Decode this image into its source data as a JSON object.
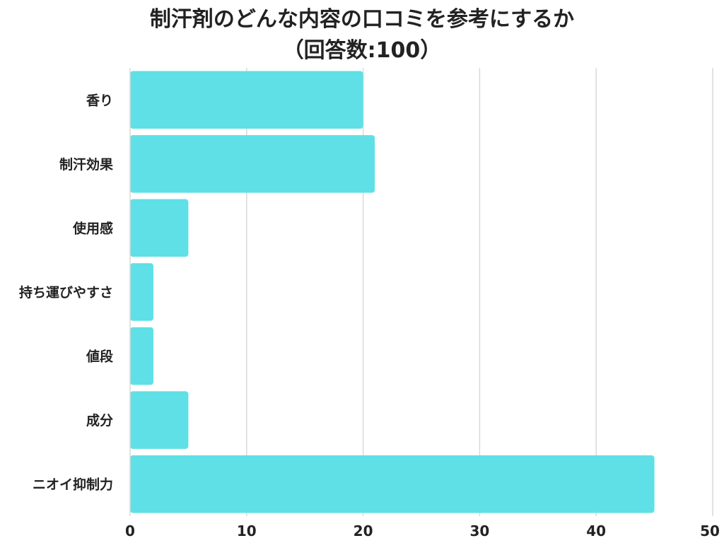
{
  "chart_data": {
    "type": "bar",
    "orientation": "horizontal",
    "title": "制汗剤のどんな内容の口コミを参考にするか",
    "subtitle": "（回答数:100）",
    "categories": [
      "香り",
      "制汗効果",
      "使用感",
      "持ち運びやすさ",
      "値段",
      "成分",
      "ニオイ抑制力"
    ],
    "values": [
      20,
      21,
      5,
      2,
      2,
      5,
      45
    ],
    "xlabel": "",
    "ylabel": "",
    "xlim": [
      0,
      50
    ],
    "xticks": [
      "0",
      "10",
      "20",
      "30",
      "40",
      "50"
    ],
    "grid": "vertical",
    "legend": "none",
    "bar_color": "#5ee0e6",
    "grid_color": "#d9d9d9"
  }
}
